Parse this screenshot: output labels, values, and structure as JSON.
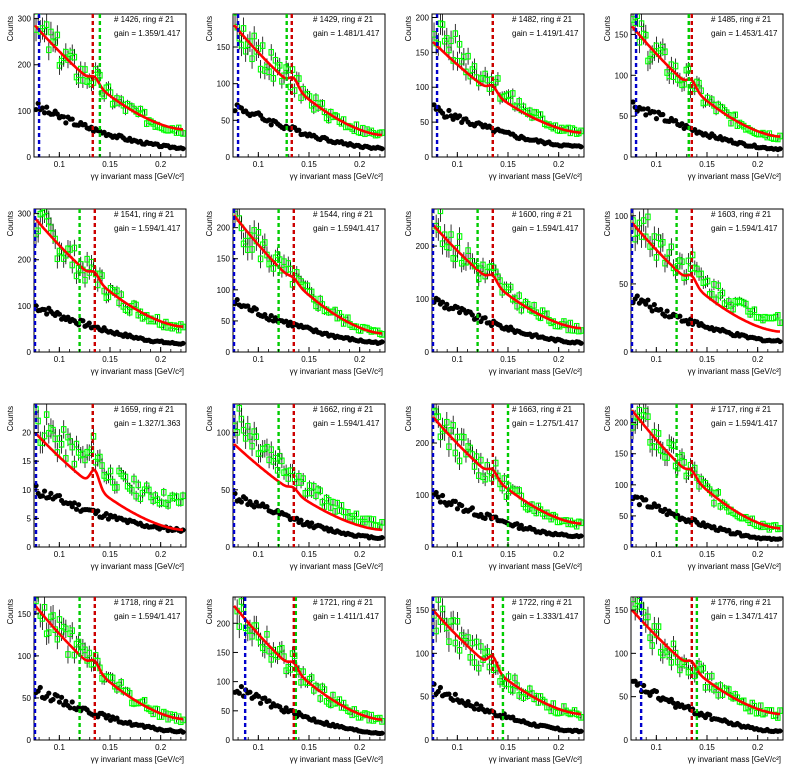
{
  "panel_xlabel": "γγ invariant mass [GeV/c²]",
  "panel_ylabel": "Counts",
  "colors": {
    "fit": "#ff0000",
    "signal_markers": "#00ff00",
    "background_markers": "#000000",
    "line_blue": "#0000cc",
    "line_red": "#cc0000",
    "line_green": "#00cc00"
  },
  "chart_data": [
    {
      "type": "scatter",
      "info": "# 1426, ring # 21",
      "gain": "gain = 1.359/1.417",
      "xlim": [
        0.075,
        0.225
      ],
      "ylim": [
        0,
        310
      ],
      "yticks": [
        0,
        100,
        200,
        300
      ],
      "xticks": [
        0.1,
        0.15,
        0.2
      ],
      "vlines": {
        "blue": 0.08,
        "red": 0.133,
        "green": 0.14
      },
      "fit": {
        "start": 285,
        "end": 60,
        "bump": 15
      },
      "signal": {
        "start": 285,
        "end": 60
      },
      "background": {
        "start": 110,
        "end": 20
      }
    },
    {
      "type": "scatter",
      "info": "# 1429, ring # 21",
      "gain": "gain = 1.481/1.417",
      "xlim": [
        0.075,
        0.225
      ],
      "ylim": [
        0,
        195
      ],
      "yticks": [
        0,
        50,
        100,
        150
      ],
      "xticks": [
        0.1,
        0.15,
        0.2
      ],
      "vlines": {
        "blue": 0.08,
        "red": 0.133,
        "green": 0.128
      },
      "fit": {
        "start": 180,
        "end": 30,
        "bump": 12
      },
      "signal": {
        "start": 180,
        "end": 30
      },
      "background": {
        "start": 70,
        "end": 12
      }
    },
    {
      "type": "scatter",
      "info": "# 1482, ring # 21",
      "gain": "gain = 1.419/1.417",
      "xlim": [
        0.075,
        0.225
      ],
      "ylim": [
        0,
        205
      ],
      "yticks": [
        0,
        50,
        100,
        150,
        200
      ],
      "xticks": [
        0.1,
        0.15,
        0.2
      ],
      "vlines": {
        "blue": 0.08,
        "red": 0.135,
        "green": 0.135
      },
      "fit": {
        "start": 165,
        "end": 35,
        "bump": 10
      },
      "signal": {
        "start": 190,
        "end": 35
      },
      "background": {
        "start": 70,
        "end": 15
      }
    },
    {
      "type": "scatter",
      "info": "# 1485, ring # 21",
      "gain": "gain = 1.453/1.417",
      "xlim": [
        0.075,
        0.225
      ],
      "ylim": [
        0,
        175
      ],
      "yticks": [
        0,
        50,
        100,
        150
      ],
      "xticks": [
        0.1,
        0.15,
        0.2
      ],
      "vlines": {
        "blue": 0.08,
        "red": 0.135,
        "green": 0.132
      },
      "fit": {
        "start": 160,
        "end": 25,
        "bump": 10
      },
      "signal": {
        "start": 160,
        "end": 25
      },
      "background": {
        "start": 65,
        "end": 10
      }
    },
    {
      "type": "scatter",
      "info": "# 1541, ring # 21",
      "gain": "gain = 1.594/1.417",
      "xlim": [
        0.075,
        0.225
      ],
      "ylim": [
        0,
        310
      ],
      "yticks": [
        0,
        100,
        200,
        300
      ],
      "xticks": [
        0.1,
        0.15,
        0.2
      ],
      "vlines": {
        "blue": 0.076,
        "red": 0.135,
        "green": 0.12
      },
      "fit": {
        "start": 290,
        "end": 55,
        "bump": 15
      },
      "signal": {
        "start": 290,
        "end": 55
      },
      "background": {
        "start": 100,
        "end": 18
      }
    },
    {
      "type": "scatter",
      "info": "# 1544, ring # 21",
      "gain": "gain = 1.594/1.417",
      "xlim": [
        0.075,
        0.225
      ],
      "ylim": [
        0,
        230
      ],
      "yticks": [
        0,
        50,
        100,
        150,
        200
      ],
      "xticks": [
        0.1,
        0.15,
        0.2
      ],
      "vlines": {
        "blue": 0.076,
        "red": 0.135,
        "green": 0.12
      },
      "fit": {
        "start": 220,
        "end": 30,
        "bump": 6
      },
      "signal": {
        "start": 220,
        "end": 30
      },
      "background": {
        "start": 80,
        "end": 15
      }
    },
    {
      "type": "scatter",
      "info": "# 1600, ring # 21",
      "gain": "gain = 1.594/1.417",
      "xlim": [
        0.075,
        0.225
      ],
      "ylim": [
        0,
        270
      ],
      "yticks": [
        0,
        100,
        200
      ],
      "xticks": [
        0.1,
        0.15,
        0.2
      ],
      "vlines": {
        "blue": 0.076,
        "red": 0.135,
        "green": 0.12
      },
      "fit": {
        "start": 240,
        "end": 45,
        "bump": 14
      },
      "signal": {
        "start": 250,
        "end": 45
      },
      "background": {
        "start": 100,
        "end": 18
      }
    },
    {
      "type": "scatter",
      "info": "# 1603, ring # 21",
      "gain": "gain = 1.594/1.417",
      "xlim": [
        0.075,
        0.225
      ],
      "ylim": [
        0,
        105
      ],
      "yticks": [
        0,
        50,
        100
      ],
      "xticks": [
        0.1,
        0.15,
        0.2
      ],
      "vlines": {
        "blue": 0.076,
        "red": 0.135,
        "green": 0.12
      },
      "fit": {
        "start": 95,
        "end": 15,
        "bump": 6
      },
      "signal": {
        "start": 100,
        "end": 25
      },
      "background": {
        "start": 40,
        "end": 8
      }
    },
    {
      "type": "scatter",
      "info": "# 1659, ring # 21",
      "gain": "gain = 1.327/1.363",
      "xlim": [
        0.075,
        0.225
      ],
      "ylim": [
        0,
        25
      ],
      "yticks": [
        0,
        5,
        10,
        15,
        20
      ],
      "xticks": [
        0.1,
        0.15,
        0.2
      ],
      "vlines": {
        "blue": 0.077,
        "red": 0.133,
        "green": 0.133
      },
      "fit": {
        "start": 20,
        "end": 3,
        "bump": 3
      },
      "signal": {
        "start": 22,
        "end": 8
      },
      "background": {
        "start": 10,
        "end": 3
      }
    },
    {
      "type": "scatter",
      "info": "# 1662, ring # 21",
      "gain": "gain = 1.594/1.417",
      "xlim": [
        0.075,
        0.225
      ],
      "ylim": [
        0,
        125
      ],
      "yticks": [
        0,
        50,
        100
      ],
      "xticks": [
        0.1,
        0.15,
        0.2
      ],
      "vlines": {
        "blue": 0.076,
        "red": 0.135,
        "green": 0.12
      },
      "fit": {
        "start": 90,
        "end": 15,
        "bump": 4
      },
      "signal": {
        "start": 115,
        "end": 20
      },
      "background": {
        "start": 45,
        "end": 8
      }
    },
    {
      "type": "scatter",
      "info": "# 1663, ring # 21",
      "gain": "gain = 1.275/1.417",
      "xlim": [
        0.075,
        0.225
      ],
      "ylim": [
        0,
        275
      ],
      "yticks": [
        0,
        100,
        200
      ],
      "xticks": [
        0.1,
        0.15,
        0.2
      ],
      "vlines": {
        "blue": 0.076,
        "red": 0.135,
        "green": 0.15
      },
      "fit": {
        "start": 250,
        "end": 45,
        "bump": 14
      },
      "signal": {
        "start": 250,
        "end": 45
      },
      "background": {
        "start": 100,
        "end": 20
      }
    },
    {
      "type": "scatter",
      "info": "# 1717, ring # 21",
      "gain": "gain = 1.594/1.417",
      "xlim": [
        0.075,
        0.225
      ],
      "ylim": [
        0,
        230
      ],
      "yticks": [
        0,
        50,
        100,
        150,
        200
      ],
      "xticks": [
        0.1,
        0.15,
        0.2
      ],
      "vlines": {
        "blue": 0.076,
        "red": 0.135,
        "green": 0.12
      },
      "fit": {
        "start": 220,
        "end": 30,
        "bump": 10
      },
      "signal": {
        "start": 220,
        "end": 30
      },
      "background": {
        "start": 80,
        "end": 12
      }
    },
    {
      "type": "scatter",
      "info": "# 1718, ring # 21",
      "gain": "gain = 1.594/1.417",
      "xlim": [
        0.075,
        0.225
      ],
      "ylim": [
        0,
        170
      ],
      "yticks": [
        0,
        50,
        100,
        150
      ],
      "xticks": [
        0.1,
        0.15,
        0.2
      ],
      "vlines": {
        "blue": 0.076,
        "red": 0.135,
        "green": 0.12
      },
      "fit": {
        "start": 160,
        "end": 25,
        "bump": 10
      },
      "signal": {
        "start": 165,
        "end": 25
      },
      "background": {
        "start": 60,
        "end": 10
      }
    },
    {
      "type": "scatter",
      "info": "# 1721, ring # 21",
      "gain": "gain = 1.411/1.417",
      "xlim": [
        0.075,
        0.225
      ],
      "ylim": [
        0,
        245
      ],
      "yticks": [
        0,
        50,
        100,
        150,
        200
      ],
      "xticks": [
        0.1,
        0.15,
        0.2
      ],
      "vlines": {
        "blue": 0.087,
        "red": 0.135,
        "green": 0.137
      },
      "fit": {
        "start": 230,
        "end": 35,
        "bump": 12
      },
      "signal": {
        "start": 230,
        "end": 35
      },
      "background": {
        "start": 90,
        "end": 12
      }
    },
    {
      "type": "scatter",
      "info": "# 1722, ring # 21",
      "gain": "gain = 1.333/1.417",
      "xlim": [
        0.075,
        0.225
      ],
      "ylim": [
        0,
        165
      ],
      "yticks": [
        0,
        50,
        100,
        150
      ],
      "xticks": [
        0.1,
        0.15,
        0.2
      ],
      "vlines": {
        "blue": 0.076,
        "red": 0.135,
        "green": 0.145
      },
      "fit": {
        "start": 150,
        "end": 30,
        "bump": 14
      },
      "signal": {
        "start": 150,
        "end": 30
      },
      "background": {
        "start": 60,
        "end": 10
      }
    },
    {
      "type": "scatter",
      "info": "# 1776, ring # 21",
      "gain": "gain = 1.347/1.417",
      "xlim": [
        0.075,
        0.225
      ],
      "ylim": [
        0,
        165
      ],
      "yticks": [
        0,
        50,
        100,
        150
      ],
      "xticks": [
        0.1,
        0.15,
        0.2
      ],
      "vlines": {
        "blue": 0.085,
        "red": 0.135,
        "green": 0.14
      },
      "fit": {
        "start": 150,
        "end": 30,
        "bump": 8
      },
      "signal": {
        "start": 150,
        "end": 30
      },
      "background": {
        "start": 65,
        "end": 10
      }
    }
  ]
}
